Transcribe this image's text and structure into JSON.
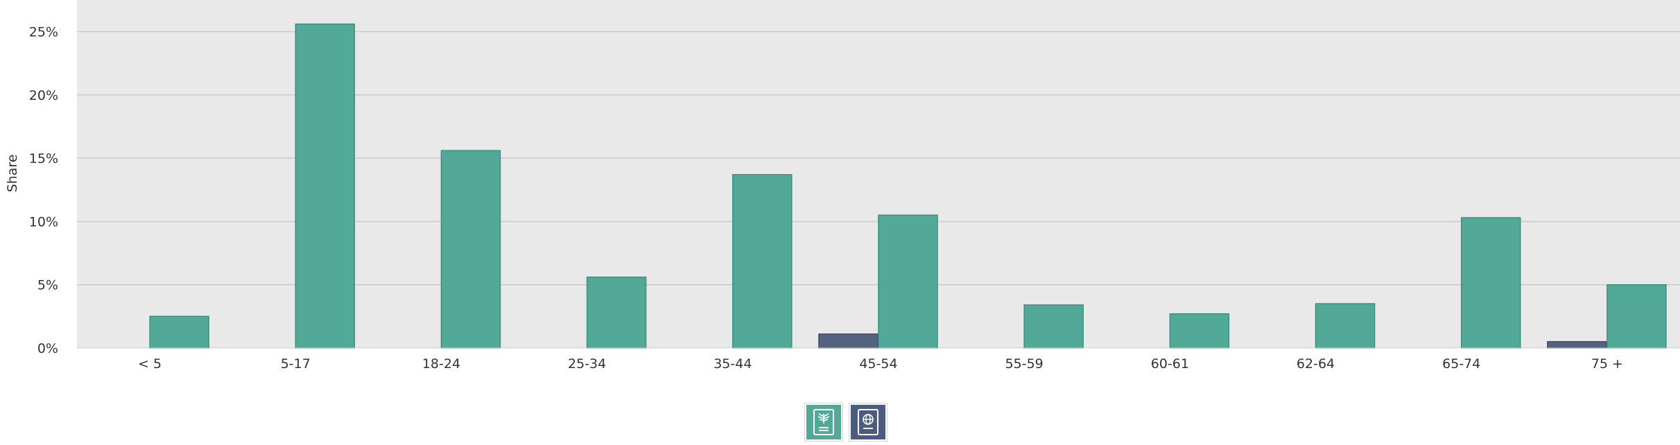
{
  "chart_data": {
    "type": "bar",
    "ylabel": "Share",
    "xlabel": "",
    "title": "",
    "categories": [
      "< 5",
      "5-17",
      "18-24",
      "25-34",
      "35-44",
      "45-54",
      "55-59",
      "60-61",
      "62-64",
      "65-74",
      "75 +"
    ],
    "ylim": [
      0,
      27.5
    ],
    "yticks": [
      0,
      5,
      10,
      15,
      20,
      25
    ],
    "ytick_format": "{v}%",
    "grid": true,
    "series": [
      {
        "color": "#56517a",
        "values": [
          0,
          0,
          0,
          0,
          0,
          1.1,
          0,
          0,
          0,
          0,
          0.5
        ]
      },
      {
        "color": "#52a997",
        "values": [
          2.5,
          25.6,
          15.6,
          5.6,
          13.7,
          10.5,
          3.4,
          2.7,
          3.5,
          10.3,
          5.0
        ]
      }
    ]
  },
  "legend": [
    {
      "icon": "eagle-passport-icon",
      "color": "#52a997"
    },
    {
      "icon": "globe-passport-icon",
      "color": "#56517a"
    }
  ]
}
